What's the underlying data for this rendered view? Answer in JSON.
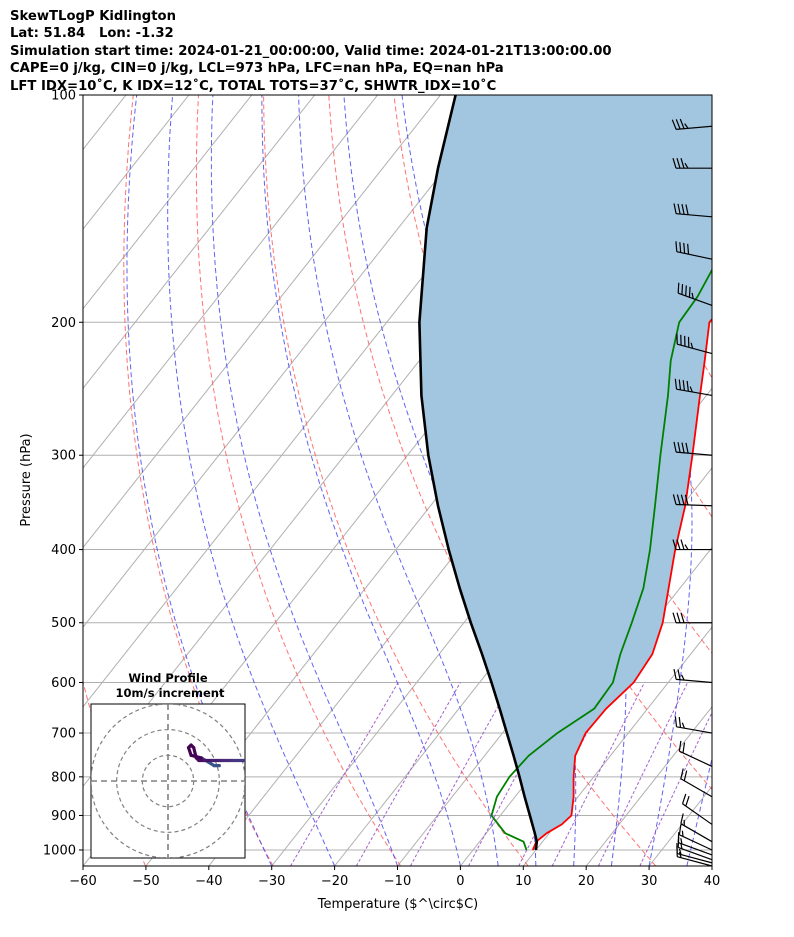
{
  "header": {
    "lines": [
      "SkewTLogP Kidlington",
      "Lat: 51.84   Lon: -1.32",
      "Simulation start time: 2024-01-21_00:00:00, Valid time: 2024-01-21T13:00:00.00",
      "CAPE=0 j/kg, CIN=0 j/kg, LCL=973 hPa, LFC=nan hPa, EQ=nan hPa",
      "LFT IDX=10˚C, K IDX=12˚C, TOTAL TOTS=37˚C, SHWTR_IDX=10˚C"
    ]
  },
  "chart_data": {
    "type": "skewt",
    "xlabel": "Temperature ($^\\circ$C)",
    "ylabel": "Pressure (hPa)",
    "xlim": [
      -60,
      40
    ],
    "ylim_hpa": [
      1050,
      100
    ],
    "x_ticks": [
      -60,
      -50,
      -40,
      -30,
      -20,
      -10,
      0,
      10,
      20,
      30,
      40
    ],
    "x_tick_labels": [
      "−60",
      "−50",
      "−40",
      "−30",
      "−20",
      "−10",
      "0",
      "10",
      "20",
      "30",
      "40"
    ],
    "y_ticks": [
      100,
      200,
      300,
      400,
      500,
      600,
      700,
      800,
      900,
      1000
    ],
    "y_tick_labels": [
      "100",
      "200",
      "300",
      "400",
      "500",
      "600",
      "700",
      "800",
      "900",
      "1000"
    ],
    "grid": true,
    "series": [
      {
        "role": "temperature",
        "color": "#ff0000",
        "points": [
          [
            1000,
            9.5
          ],
          [
            975,
            9.0
          ],
          [
            950,
            9.6
          ],
          [
            925,
            10.9
          ],
          [
            900,
            11.3
          ],
          [
            850,
            9.3
          ],
          [
            800,
            6.8
          ],
          [
            750,
            4.4
          ],
          [
            700,
            3.2
          ],
          [
            650,
            3.4
          ],
          [
            600,
            4.5
          ],
          [
            550,
            3.9
          ],
          [
            500,
            1.6
          ],
          [
            450,
            -1.8
          ],
          [
            400,
            -5.6
          ],
          [
            350,
            -9.5
          ],
          [
            300,
            -14.7
          ],
          [
            250,
            -21.0
          ],
          [
            225,
            -24.6
          ],
          [
            200,
            -28.7
          ],
          [
            190,
            -28.6
          ],
          [
            175,
            -27.4
          ],
          [
            160,
            -25.3
          ],
          [
            150,
            -24.1
          ],
          [
            140,
            -22.4
          ],
          [
            125,
            -19.5
          ],
          [
            110,
            -17.1
          ],
          [
            100,
            -16.2
          ]
        ]
      },
      {
        "role": "dewpoint",
        "color": "#008000",
        "points": [
          [
            1000,
            8.5
          ],
          [
            975,
            7.0
          ],
          [
            950,
            3.0
          ],
          [
            900,
            -1.4
          ],
          [
            850,
            -2.9
          ],
          [
            800,
            -3.4
          ],
          [
            750,
            -3.0
          ],
          [
            700,
            -1.3
          ],
          [
            650,
            1.5
          ],
          [
            600,
            1.2
          ],
          [
            550,
            -1.2
          ],
          [
            500,
            -3.3
          ],
          [
            450,
            -5.8
          ],
          [
            400,
            -9.6
          ],
          [
            350,
            -14.3
          ],
          [
            300,
            -19.8
          ],
          [
            250,
            -26.1
          ],
          [
            225,
            -30.0
          ],
          [
            200,
            -33.5
          ],
          [
            185,
            -33.8
          ],
          [
            170,
            -34.9
          ],
          [
            160,
            -34.3
          ],
          [
            140,
            -34.3
          ],
          [
            130,
            -36.0
          ],
          [
            125,
            -36.1
          ],
          [
            110,
            -33.6
          ],
          [
            100,
            -31.0
          ]
        ]
      },
      {
        "role": "parcel",
        "color": "#000000",
        "points": [
          [
            1000,
            10.0
          ],
          [
            975,
            9.1
          ],
          [
            950,
            7.7
          ],
          [
            900,
            4.7
          ],
          [
            850,
            1.5
          ],
          [
            800,
            -1.8
          ],
          [
            750,
            -5.4
          ],
          [
            700,
            -9.3
          ],
          [
            650,
            -13.5
          ],
          [
            600,
            -18.1
          ],
          [
            550,
            -23.2
          ],
          [
            500,
            -28.9
          ],
          [
            450,
            -35.0
          ],
          [
            400,
            -41.6
          ],
          [
            350,
            -48.8
          ],
          [
            300,
            -56.7
          ],
          [
            250,
            -65.3
          ],
          [
            200,
            -74.8
          ],
          [
            150,
            -85.5
          ],
          [
            125,
            -91.2
          ],
          [
            100,
            -97.6
          ]
        ]
      }
    ],
    "cin_fill_color": "#a3c6e0",
    "dry_adiabats_theta_k": [
      180,
      200,
      220,
      240,
      260,
      280,
      300,
      320,
      340,
      360,
      380,
      400,
      420,
      440
    ],
    "moist_adiabats_start_c": [
      -30,
      -20,
      -10,
      0,
      6,
      12,
      18,
      24,
      30,
      36
    ],
    "mixing_ratios_gkg": [
      0.4,
      1,
      2,
      4,
      7,
      10,
      16,
      24
    ],
    "wind_barbs": [
      {
        "p": 1050,
        "speed_kt": 15,
        "dir_deg": 285
      },
      {
        "p": 1040,
        "speed_kt": 15,
        "dir_deg": 285
      },
      {
        "p": 1030,
        "speed_kt": 15,
        "dir_deg": 290
      },
      {
        "p": 1015,
        "speed_kt": 15,
        "dir_deg": 290
      },
      {
        "p": 1000,
        "speed_kt": 15,
        "dir_deg": 295
      },
      {
        "p": 975,
        "speed_kt": 15,
        "dir_deg": 300
      },
      {
        "p": 925,
        "speed_kt": 20,
        "dir_deg": 305
      },
      {
        "p": 850,
        "speed_kt": 20,
        "dir_deg": 300
      },
      {
        "p": 775,
        "speed_kt": 20,
        "dir_deg": 295
      },
      {
        "p": 700,
        "speed_kt": 25,
        "dir_deg": 280
      },
      {
        "p": 600,
        "speed_kt": 25,
        "dir_deg": 275
      },
      {
        "p": 500,
        "speed_kt": 30,
        "dir_deg": 270
      },
      {
        "p": 400,
        "speed_kt": 35,
        "dir_deg": 270
      },
      {
        "p": 350,
        "speed_kt": 40,
        "dir_deg": 272
      },
      {
        "p": 300,
        "speed_kt": 40,
        "dir_deg": 275
      },
      {
        "p": 250,
        "speed_kt": 45,
        "dir_deg": 280
      },
      {
        "p": 220,
        "speed_kt": 45,
        "dir_deg": 285
      },
      {
        "p": 190,
        "speed_kt": 45,
        "dir_deg": 290
      },
      {
        "p": 165,
        "speed_kt": 40,
        "dir_deg": 282
      },
      {
        "p": 145,
        "speed_kt": 40,
        "dir_deg": 275
      },
      {
        "p": 125,
        "speed_kt": 35,
        "dir_deg": 270
      },
      {
        "p": 110,
        "speed_kt": 35,
        "dir_deg": 265
      }
    ],
    "hodograph": {
      "title": "Wind Profile",
      "subtitle": "10m/s increment",
      "ring_increment_ms": 10,
      "rings": 3,
      "range_ms": 30,
      "trace_uv": [
        [
          20,
          6
        ],
        [
          18,
          6
        ],
        [
          13,
          9
        ],
        [
          9,
          10
        ],
        [
          8,
          13
        ],
        [
          9,
          14
        ],
        [
          10,
          13
        ],
        [
          11,
          9
        ],
        [
          12,
          8
        ],
        [
          14,
          8
        ],
        [
          17,
          8
        ],
        [
          21,
          8
        ],
        [
          25,
          8
        ],
        [
          30,
          8
        ]
      ]
    }
  }
}
